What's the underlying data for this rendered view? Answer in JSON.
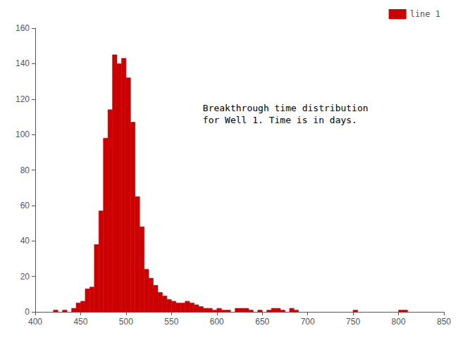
{
  "chart_data": {
    "type": "histogram",
    "annotations": [
      "Breakthrough time distribution\nfor Well 1. Time is in days."
    ],
    "bins": [
      420,
      425,
      430,
      435,
      440,
      445,
      450,
      455,
      460,
      465,
      470,
      475,
      480,
      485,
      490,
      495,
      500,
      505,
      510,
      515,
      520,
      525,
      530,
      535,
      540,
      545,
      550,
      555,
      560,
      565,
      570,
      575,
      580,
      585,
      590,
      595,
      600,
      605,
      610,
      615,
      620,
      625,
      630,
      635,
      640,
      645,
      650,
      655,
      660,
      665,
      670,
      675,
      680,
      685,
      690,
      695,
      700,
      705,
      710,
      715,
      720,
      725,
      730,
      735,
      740,
      745,
      750,
      755,
      760,
      765,
      770,
      775,
      780,
      785,
      790,
      795,
      800,
      805,
      810
    ],
    "series": [
      {
        "name": "line 1",
        "color": "#cc0000",
        "values": [
          1,
          0,
          1,
          0,
          2,
          5,
          6,
          13,
          14,
          38,
          57,
          98,
          114,
          145,
          140,
          143,
          132,
          107,
          65,
          48,
          24,
          19,
          15,
          11,
          9,
          7,
          6,
          5,
          5,
          6,
          5,
          4,
          3,
          2,
          2,
          1,
          2,
          1,
          1,
          0,
          2,
          2,
          2,
          1,
          0,
          1,
          0,
          1,
          2,
          2,
          1,
          0,
          2,
          1,
          0,
          0,
          0,
          0,
          0,
          0,
          0,
          0,
          0,
          0,
          0,
          0,
          1,
          0,
          0,
          0,
          0,
          0,
          0,
          0,
          0,
          0,
          1,
          1
        ]
      }
    ],
    "xlim": [
      400,
      850
    ],
    "xticks": [
      400,
      450,
      500,
      550,
      600,
      650,
      700,
      750,
      800,
      850
    ],
    "ylim": [
      0,
      160
    ],
    "yticks": [
      0,
      20,
      40,
      60,
      80,
      100,
      120,
      140,
      160
    ],
    "legend": "upper right",
    "grid": false
  }
}
